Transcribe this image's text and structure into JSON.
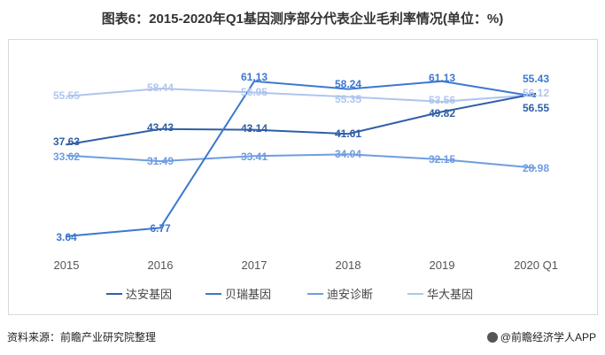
{
  "chart_data": {
    "type": "line",
    "title": "图表6：2015-2020年Q1基因测序部分代表企业毛利率情况(单位：%)",
    "categories": [
      "2015",
      "2016",
      "2017",
      "2018",
      "2019",
      "2020 Q1"
    ],
    "ylim": [
      0,
      65
    ],
    "grid": false,
    "legend_position": "bottom",
    "series": [
      {
        "name": "达安基因",
        "color": "#2f5fa7",
        "values": [
          37.63,
          43.43,
          43.14,
          41.61,
          49.82,
          56.55
        ]
      },
      {
        "name": "贝瑞基因",
        "color": "#3c78cf",
        "values": [
          3.64,
          6.77,
          61.13,
          58.24,
          61.13,
          55.43
        ]
      },
      {
        "name": "迪安诊断",
        "color": "#6f9de0",
        "values": [
          33.62,
          31.49,
          33.41,
          34.04,
          32.15,
          28.98
        ]
      },
      {
        "name": "华大基因",
        "color": "#afc5ef",
        "values": [
          55.55,
          58.44,
          56.95,
          55.35,
          53.56,
          56.12
        ]
      }
    ]
  },
  "footer": {
    "source": "资料来源：前瞻产业研究院整理",
    "brand": "@前瞻经济学人APP"
  }
}
